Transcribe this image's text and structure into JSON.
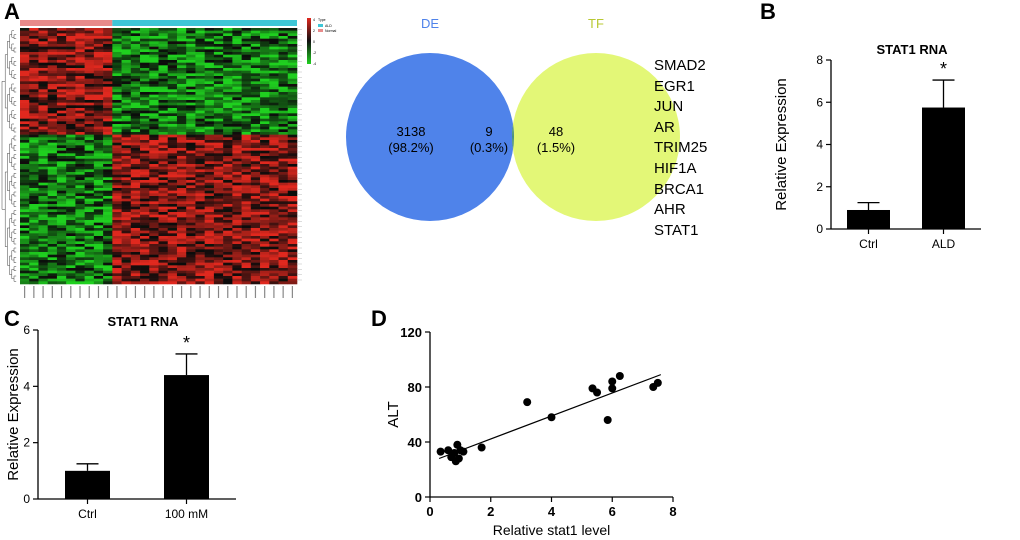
{
  "panels": {
    "a": "A",
    "b": "B",
    "c": "C",
    "d": "D"
  },
  "heatmap": {
    "legend": {
      "title": "Type",
      "entries": [
        "ALD",
        "Normal"
      ],
      "scale": [
        "4",
        "2",
        "0",
        "-2",
        "-4"
      ]
    },
    "colors": {
      "high": "#e0281e",
      "low": "#1fd01f",
      "mid": "#0b0b0b",
      "group_ald": "#e88a8a",
      "group_normal": "#3ec6d6"
    }
  },
  "venn": {
    "left": {
      "label": "DE",
      "count": "3138",
      "pct": "(98.2%)",
      "color": "#4f83ea"
    },
    "right": {
      "label": "TF",
      "count": "48",
      "pct": "(1.5%)",
      "color": "#e3f777"
    },
    "overlap": {
      "count": "9",
      "pct": "(0.3%)",
      "color": "#4a8f82"
    },
    "genes": [
      "SMAD2",
      "EGR1",
      "JUN",
      "AR",
      "TRIM25",
      "HIF1A",
      "BRCA1",
      "AHR",
      "STAT1"
    ]
  },
  "chart_data": [
    {
      "id": "B",
      "type": "bar",
      "title": "STAT1 RNA",
      "categories": [
        "Ctrl",
        "ALD"
      ],
      "values": [
        0.9,
        5.75
      ],
      "errors": [
        0.35,
        1.3
      ],
      "significance": [
        "",
        "*"
      ],
      "xlabel": "",
      "ylabel": "Relative Expression",
      "ylim": [
        0,
        8
      ],
      "yticks": [
        0,
        2,
        4,
        6,
        8
      ]
    },
    {
      "id": "C",
      "type": "bar",
      "title": "STAT1 RNA",
      "categories": [
        "Ctrl",
        "100 mM"
      ],
      "values": [
        1.0,
        4.4
      ],
      "errors": [
        0.25,
        0.75
      ],
      "significance": [
        "",
        "*"
      ],
      "xlabel": "",
      "ylabel": "Relative Expression",
      "ylim": [
        0,
        6
      ],
      "yticks": [
        0,
        2,
        4,
        6
      ]
    },
    {
      "id": "D",
      "type": "scatter",
      "title": "",
      "xlabel": "Relative stat1 level",
      "ylabel": "ALT",
      "xlim": [
        0,
        8
      ],
      "ylim": [
        0,
        120
      ],
      "xticks": [
        0,
        2,
        4,
        6,
        8
      ],
      "yticks": [
        0,
        40,
        80,
        120
      ],
      "x": [
        0.35,
        0.6,
        0.7,
        0.8,
        0.85,
        0.9,
        0.95,
        1.0,
        1.1,
        1.7,
        3.2,
        4.0,
        5.35,
        5.5,
        5.85,
        6.0,
        6.0,
        6.25,
        7.35,
        7.5
      ],
      "y": [
        33,
        34,
        29,
        32,
        26,
        38,
        28,
        34,
        33,
        36,
        69,
        58,
        79,
        76,
        56,
        84,
        79,
        88,
        80,
        83
      ],
      "fit": {
        "x": [
          0.3,
          7.6
        ],
        "y": [
          28,
          89
        ]
      }
    }
  ]
}
